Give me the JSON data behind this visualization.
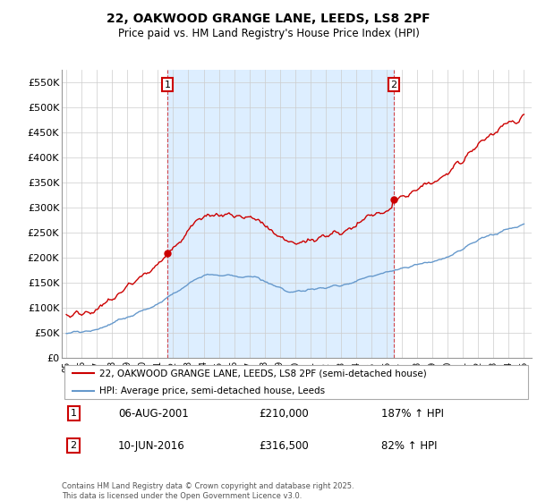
{
  "title": "22, OAKWOOD GRANGE LANE, LEEDS, LS8 2PF",
  "subtitle": "Price paid vs. HM Land Registry's House Price Index (HPI)",
  "legend_line1": "22, OAKWOOD GRANGE LANE, LEEDS, LS8 2PF (semi-detached house)",
  "legend_line2": "HPI: Average price, semi-detached house, Leeds",
  "annotation1_date": "06-AUG-2001",
  "annotation1_price": "£210,000",
  "annotation1_hpi": "187% ↑ HPI",
  "annotation2_date": "10-JUN-2016",
  "annotation2_price": "£316,500",
  "annotation2_hpi": "82% ↑ HPI",
  "footer": "Contains HM Land Registry data © Crown copyright and database right 2025.\nThis data is licensed under the Open Government Licence v3.0.",
  "price_color": "#cc0000",
  "hpi_color": "#6699cc",
  "shade_color": "#ddeeff",
  "ylim": [
    0,
    575000
  ],
  "yticks": [
    0,
    50000,
    100000,
    150000,
    200000,
    250000,
    300000,
    350000,
    400000,
    450000,
    500000,
    550000
  ],
  "ytick_labels": [
    "£0",
    "£50K",
    "£100K",
    "£150K",
    "£200K",
    "£250K",
    "£300K",
    "£350K",
    "£400K",
    "£450K",
    "£500K",
    "£550K"
  ],
  "background_color": "#ffffff",
  "grid_color": "#cccccc",
  "purchase1_year": 2001.625,
  "purchase1_price": 210000,
  "purchase2_year": 2016.458,
  "purchase2_price": 316500
}
